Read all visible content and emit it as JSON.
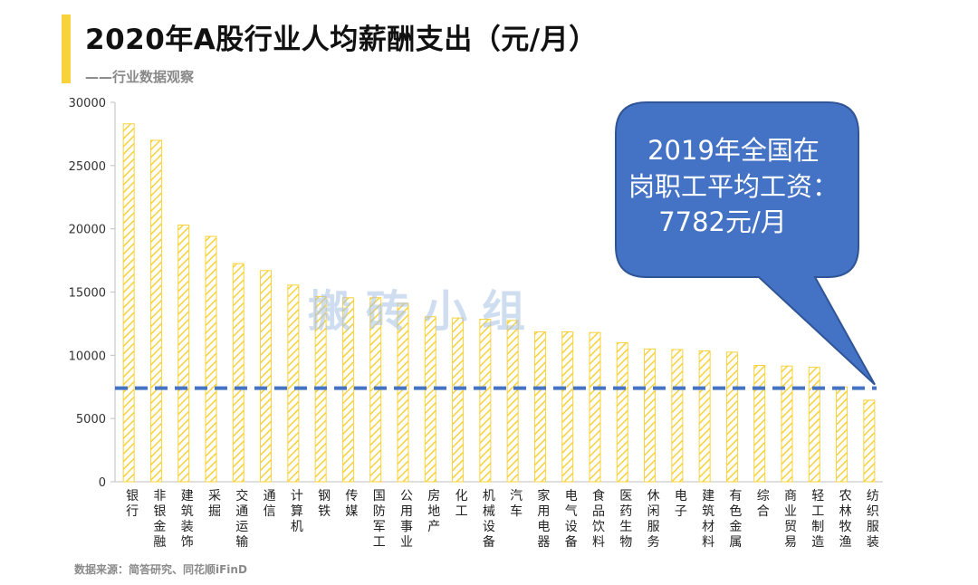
{
  "header": {
    "title": "2020年A股行业人均薪酬支出（元/月）",
    "subtitle": "——行业数据观察",
    "accent_color": "#f7d23a"
  },
  "footer": {
    "source": "数据来源：简答研究、同花顺iFinD"
  },
  "watermark": "搬砖小组",
  "callout": {
    "lines": [
      "2019年全国在",
      "岗职工平均工资：",
      "7782元/月"
    ],
    "fill_color": "#4472c4"
  },
  "chart_data": {
    "type": "bar",
    "title": "2020年A股行业人均薪酬支出（元/月）",
    "categories": [
      "银行",
      "非银金融",
      "建筑装饰",
      "采掘",
      "交通运输",
      "通信",
      "计算机",
      "钢铁",
      "传媒",
      "国防军工",
      "公用事业",
      "房地产",
      "化工",
      "机械设备",
      "汽车",
      "家用电器",
      "电气设备",
      "食品饮料",
      "医药生物",
      "休闲服务",
      "电子",
      "建筑材料",
      "有色金属",
      "综合",
      "商业贸易",
      "轻工制造",
      "农林牧渔",
      "纺织服装"
    ],
    "values": [
      28300,
      27000,
      20300,
      19400,
      17250,
      16700,
      15550,
      14650,
      14550,
      14550,
      14100,
      13050,
      12950,
      12850,
      12750,
      11850,
      11850,
      11800,
      11000,
      10500,
      10450,
      10350,
      10250,
      9200,
      9150,
      9050,
      7500,
      6450
    ],
    "yticks": [
      0,
      5000,
      10000,
      15000,
      20000,
      25000,
      30000
    ],
    "ylim": [
      0,
      30000
    ],
    "xlabel": "",
    "ylabel": "",
    "reference_line": {
      "value": 7400,
      "color": "#4472c4"
    },
    "bar_color": "#f7d23a"
  }
}
